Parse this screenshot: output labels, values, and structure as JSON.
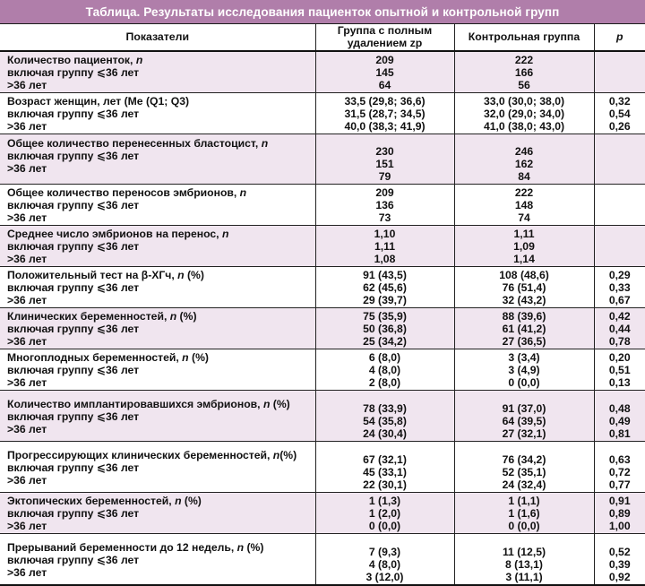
{
  "title": "Таблица. Результаты исследования пациенток опытной и контрольной групп",
  "columns": [
    "Показатели",
    "Группа с полным удалением zp",
    "Контрольная группа",
    "p"
  ],
  "colors": {
    "title_bg": "#b07eaa",
    "title_text": "#ffffff",
    "row_pink": "#f0e5ef",
    "row_white": "#ffffff",
    "border": "#222222"
  },
  "groups": [
    {
      "shade": "pink",
      "spacing": "normal",
      "labels": [
        "Количество пациенток, n",
        "включая группу ⩽36 лет",
        ">36 лет"
      ],
      "exp": [
        "209",
        "145",
        "64"
      ],
      "ctrl": [
        "222",
        "166",
        "56"
      ],
      "p": [
        "",
        "",
        ""
      ]
    },
    {
      "shade": "white",
      "spacing": "normal",
      "labels": [
        "Возраст женщин, лет (Ме (Q1; Q3)",
        "включая группу ⩽36 лет",
        ">36 лет"
      ],
      "exp": [
        "33,5 (29,8; 36,6)",
        "31,5 (28,7; 34,5)",
        "40,0 (38,3; 41,9)"
      ],
      "ctrl": [
        "33,0 (30,0; 38,0)",
        "32,0 (29,0; 34,0)",
        "41,0 (38,0; 43,0)"
      ],
      "p": [
        "0,32",
        "0,54",
        "0,26"
      ]
    },
    {
      "shade": "pink",
      "spacing": "semi",
      "labels": [
        "Общее количество перенесенных бластоцист, n",
        "включая группу ⩽36 лет",
        ">36 лет"
      ],
      "exp": [
        "230",
        "151",
        "79"
      ],
      "ctrl": [
        "246",
        "162",
        "84"
      ],
      "p": [
        "",
        "",
        ""
      ]
    },
    {
      "shade": "white",
      "spacing": "normal",
      "labels": [
        "Общее количество переносов эмбрионов, n",
        "включая группу ⩽36 лет",
        ">36 лет"
      ],
      "exp": [
        "209",
        "136",
        "73"
      ],
      "ctrl": [
        "222",
        "148",
        "74"
      ],
      "p": [
        "",
        "",
        ""
      ]
    },
    {
      "shade": "pink",
      "spacing": "normal",
      "labels": [
        "Среднее число эмбрионов на перенос, n",
        "включая группу ⩽36 лет",
        ">36 лет"
      ],
      "exp": [
        "1,10",
        "1,11",
        "1,08"
      ],
      "ctrl": [
        "1,11",
        "1,09",
        "1,14"
      ],
      "p": [
        "",
        "",
        ""
      ]
    },
    {
      "shade": "white",
      "spacing": "normal",
      "labels": [
        "Положительный тест на β-ХГч, n (%)",
        "включая группу ⩽36 лет",
        ">36 лет"
      ],
      "exp": [
        "91 (43,5)",
        "62 (45,6)",
        "29 (39,7)"
      ],
      "ctrl": [
        "108 (48,6)",
        "76 (51,4)",
        "32 (43,2)"
      ],
      "p": [
        "0,29",
        "0,33",
        "0,67"
      ]
    },
    {
      "shade": "pink",
      "spacing": "normal",
      "labels": [
        "Клинических беременностей, n (%)",
        "включая группу ⩽36 лет",
        ">36 лет"
      ],
      "exp": [
        "75 (35,9)",
        "50 (36,8)",
        "25 (34,2)"
      ],
      "ctrl": [
        "88 (39,6)",
        "61 (41,2)",
        "27 (36,5)"
      ],
      "p": [
        "0,42",
        "0,44",
        "0,78"
      ]
    },
    {
      "shade": "white",
      "spacing": "normal",
      "labels": [
        "Многоплодных беременностей, n (%)",
        "включая группу ⩽36 лет",
        ">36 лет"
      ],
      "exp": [
        "6 (8,0)",
        "4 (8,0)",
        "2 (8,0)"
      ],
      "ctrl": [
        "3 (3,4)",
        "3 (4,9)",
        "0 (0,0)"
      ],
      "p": [
        "0,20",
        "0,51",
        "0,13"
      ]
    },
    {
      "shade": "pink",
      "spacing": "tall",
      "labels": [
        "Количество имплантировавшихся эмбрионов, n (%)",
        "включая группу ⩽36 лет",
        ">36 лет"
      ],
      "exp": [
        "78 (33,9)",
        "54 (35,8)",
        "24 (30,4)"
      ],
      "ctrl": [
        "91 (37,0)",
        "64 (39,5)",
        "27 (32,1)"
      ],
      "p": [
        "0,48",
        "0,49",
        "0,81"
      ]
    },
    {
      "shade": "white",
      "spacing": "tall",
      "labels": [
        "Прогрессирующих клинических беременностей, n(%)",
        "включая группу ⩽36 лет",
        ">36 лет"
      ],
      "exp": [
        "67 (32,1)",
        "45 (33,1)",
        "22 (30,1)"
      ],
      "ctrl": [
        "76 (34,2)",
        "52 (35,1)",
        "24 (32,4)"
      ],
      "p": [
        "0,63",
        "0,72",
        "0,77"
      ]
    },
    {
      "shade": "pink",
      "spacing": "normal",
      "labels": [
        "Эктопических беременностей, n (%)",
        "включая группу ⩽36 лет",
        ">36 лет"
      ],
      "exp": [
        "1 (1,3)",
        "1 (2,0)",
        "0 (0,0)"
      ],
      "ctrl": [
        "1 (1,1)",
        "1 (1,6)",
        "0 (0,0)"
      ],
      "p": [
        "0,91",
        "0,89",
        "1,00"
      ]
    },
    {
      "shade": "white",
      "spacing": "tall",
      "labels": [
        "Прерываний беременности до 12 недель, n (%)",
        "включая группу ⩽36 лет",
        ">36 лет"
      ],
      "exp": [
        "7 (9,3)",
        "4 (8,0)",
        "3 (12,0)"
      ],
      "ctrl": [
        "11 (12,5)",
        "8 (13,1)",
        "3 (11,1)"
      ],
      "p": [
        "0,52",
        "0,39",
        "0,92"
      ]
    }
  ]
}
